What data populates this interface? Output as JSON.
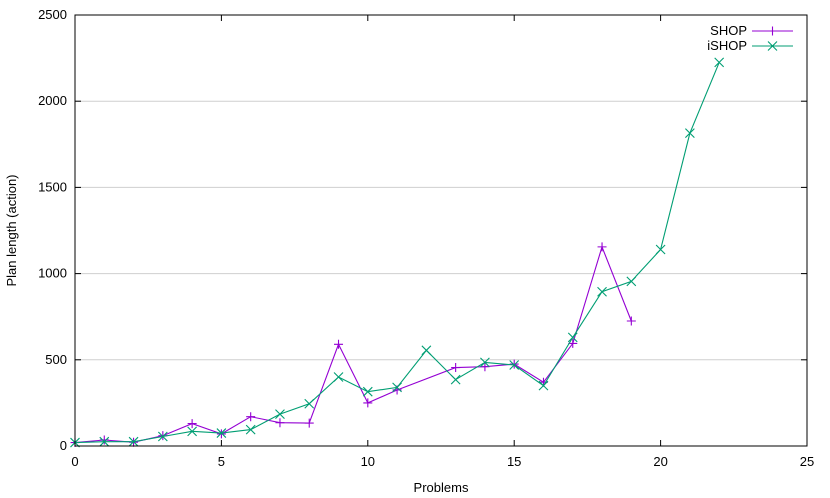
{
  "chart_data": {
    "type": "line",
    "title": "",
    "xlabel": "Problems",
    "ylabel": "Plan length (action)",
    "xlim": [
      0,
      25
    ],
    "ylim": [
      0,
      2500
    ],
    "xticks": [
      0,
      5,
      10,
      15,
      20,
      25
    ],
    "yticks": [
      0,
      500,
      1000,
      1500,
      2000,
      2500
    ],
    "grid": "horizontal",
    "legend_position": "top-right",
    "series": [
      {
        "name": "SHOP",
        "color": "#9400d3",
        "marker": "plus",
        "x": [
          0,
          1,
          2,
          3,
          4,
          5,
          6,
          7,
          8,
          9,
          10,
          11,
          13,
          14,
          15,
          16,
          17,
          18,
          19
        ],
        "y": [
          20,
          35,
          22,
          60,
          130,
          70,
          170,
          135,
          133,
          590,
          250,
          325,
          455,
          460,
          475,
          370,
          595,
          1155,
          725
        ]
      },
      {
        "name": "iSHOP",
        "color": "#009e73",
        "marker": "cross",
        "x": [
          0,
          1,
          2,
          3,
          4,
          5,
          6,
          7,
          8,
          9,
          10,
          11,
          12,
          13,
          14,
          15,
          16,
          17,
          18,
          19,
          20,
          21,
          22
        ],
        "y": [
          20,
          25,
          25,
          55,
          85,
          75,
          95,
          185,
          245,
          400,
          315,
          340,
          555,
          385,
          485,
          470,
          350,
          630,
          895,
          955,
          1140,
          1815,
          2225
        ]
      }
    ]
  }
}
